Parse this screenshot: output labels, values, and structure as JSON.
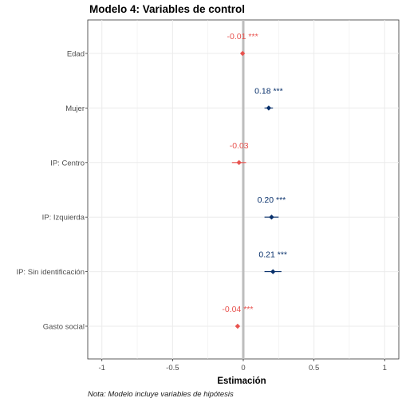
{
  "chart_data": {
    "type": "scatter",
    "subtype": "coefficient-plot",
    "title": "Modelo 4: Variables de control",
    "xlabel": "Estimación",
    "ylabel": "",
    "caption": "Nota: Modelo incluye variables de hipótesis",
    "xlim": [
      -1.1,
      1.1
    ],
    "x_ticks": [
      -1,
      -0.5,
      0,
      0.5,
      1
    ],
    "x_tick_labels": [
      "-1",
      "-0.5",
      "0",
      "0.5",
      "1"
    ],
    "reference_line": 0,
    "grid": true,
    "colors": {
      "positive": "#08306b",
      "negative": "#e8534f",
      "reference": "#bdbdbd",
      "grid": "#ebebeb"
    },
    "points": [
      {
        "label": "Edad",
        "estimate": -0.005,
        "ci": [
          -0.008,
          -0.002
        ],
        "label_text": "-0.01 ***",
        "sign": "negative"
      },
      {
        "label": "Mujer",
        "estimate": 0.18,
        "ci": [
          0.15,
          0.21
        ],
        "label_text": "0.18 ***",
        "sign": "positive"
      },
      {
        "label": "IP: Centro",
        "estimate": -0.03,
        "ci": [
          -0.08,
          0.02
        ],
        "label_text": "-0.03",
        "sign": "negative"
      },
      {
        "label": "IP: Izquierda",
        "estimate": 0.2,
        "ci": [
          0.15,
          0.25
        ],
        "label_text": "0.20 ***",
        "sign": "positive"
      },
      {
        "label": "IP: Sin identificación",
        "estimate": 0.21,
        "ci": [
          0.15,
          0.27
        ],
        "label_text": "0.21 ***",
        "sign": "positive"
      },
      {
        "label": "Gasto social",
        "estimate": -0.04,
        "ci": [
          -0.055,
          -0.025
        ],
        "label_text": "-0.04 ***",
        "sign": "negative"
      }
    ]
  }
}
